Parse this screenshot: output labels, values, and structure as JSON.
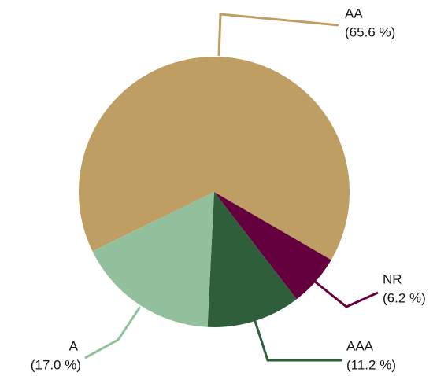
{
  "chart_data": {
    "type": "pie",
    "categories": [
      "AA",
      "NR",
      "AAA",
      "A"
    ],
    "values": [
      65.6,
      6.2,
      11.2,
      17.0
    ],
    "value_labels": [
      "(65.6 %)",
      "(6.2 %)",
      "(11.2 %)",
      "(17.0 %)"
    ],
    "colors": [
      "#be9e62",
      "#65003f",
      "#2f5e3b",
      "#93c09c"
    ]
  }
}
